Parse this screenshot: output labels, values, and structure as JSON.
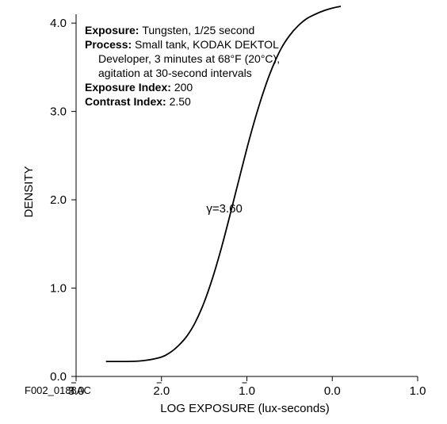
{
  "figure_id": "F002_0188AC",
  "chart_data": {
    "type": "line",
    "xlabel": "LOG EXPOSURE (lux-seconds)",
    "ylabel": "DENSITY",
    "x_ticks": [
      "3.0",
      "2.0",
      "1.0",
      "0.0",
      "1.0"
    ],
    "x_tick_values": [
      -3,
      -2,
      -1,
      0,
      1
    ],
    "y_ticks": [
      "0.0",
      "1.0",
      "2.0",
      "3.0",
      "4.0"
    ],
    "y_tick_values": [
      0,
      1,
      2,
      3,
      4
    ],
    "xlim": [
      -3,
      1
    ],
    "ylim": [
      0,
      4.1
    ],
    "grid": false,
    "series": [
      {
        "x": [
          -2.65,
          -2.4,
          -2.2,
          -2.0,
          -1.9,
          -1.8,
          -1.7,
          -1.6,
          -1.5,
          -1.4,
          -1.3,
          -1.2,
          -1.1,
          -1.0,
          -0.9,
          -0.8,
          -0.7,
          -0.6,
          -0.5,
          -0.4,
          -0.3,
          -0.2,
          -0.1,
          0.0,
          0.1
        ],
        "y": [
          0.17,
          0.17,
          0.18,
          0.22,
          0.27,
          0.35,
          0.46,
          0.62,
          0.84,
          1.12,
          1.45,
          1.82,
          2.2,
          2.58,
          2.93,
          3.24,
          3.5,
          3.71,
          3.86,
          3.97,
          4.05,
          4.1,
          4.14,
          4.17,
          4.19
        ]
      }
    ],
    "annotations": [
      {
        "text": "γ=3.60",
        "x": -1.4,
        "y": 1.9
      }
    ]
  },
  "info_box": {
    "lines": [
      {
        "key": "Exposure:",
        "value": "Tungsten, 1/25 second",
        "indent": false
      },
      {
        "key": "Process:",
        "value": "Small tank, KODAK DEKTOL",
        "indent": false
      },
      {
        "key": "",
        "value": "Developer, 3 minutes at 68°F (20°C),",
        "indent": true
      },
      {
        "key": "",
        "value": "agitation at 30-second intervals",
        "indent": true
      },
      {
        "key": "Exposure Index:",
        "value": "200",
        "indent": false
      },
      {
        "key": "Contrast Index:",
        "value": "2.50",
        "indent": false
      }
    ]
  }
}
